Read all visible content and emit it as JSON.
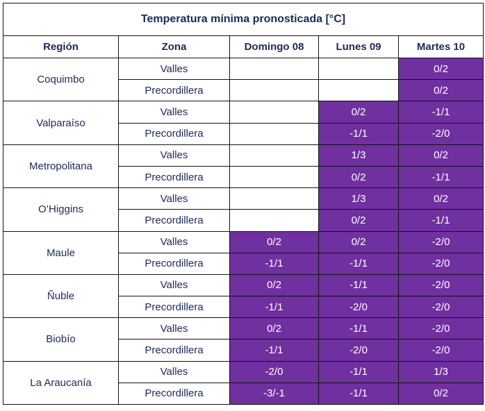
{
  "title": "Temperatura mínima pronosticada [°C]",
  "headers": [
    "Región",
    "Zona",
    "Domingo 08",
    "Lunes 09",
    "Martes 10"
  ],
  "highlight_color": "#7030a0",
  "regions": [
    {
      "name": "Coquimbo",
      "rows": [
        {
          "zona": "Valles",
          "values": [
            "",
            "",
            "0/2"
          ]
        },
        {
          "zona": "Precordillera",
          "values": [
            "",
            "",
            "0/2"
          ]
        }
      ]
    },
    {
      "name": "Valparaíso",
      "rows": [
        {
          "zona": "Valles",
          "values": [
            "",
            "0/2",
            "-1/1"
          ]
        },
        {
          "zona": "Precordillera",
          "values": [
            "",
            "-1/1",
            "-2/0"
          ]
        }
      ]
    },
    {
      "name": "Metropolitana",
      "rows": [
        {
          "zona": "Valles",
          "values": [
            "",
            "1/3",
            "0/2"
          ]
        },
        {
          "zona": "Precordillera",
          "values": [
            "",
            "0/2",
            "-1/1"
          ]
        }
      ]
    },
    {
      "name": "O’Higgins",
      "rows": [
        {
          "zona": "Valles",
          "values": [
            "",
            "1/3",
            "0/2"
          ]
        },
        {
          "zona": "Precordillera",
          "values": [
            "",
            "0/2",
            "-1/1"
          ]
        }
      ]
    },
    {
      "name": "Maule",
      "rows": [
        {
          "zona": "Valles",
          "values": [
            "0/2",
            "0/2",
            "-2/0"
          ]
        },
        {
          "zona": "Precordillera",
          "values": [
            "-1/1",
            "-1/1",
            "-2/0"
          ]
        }
      ]
    },
    {
      "name": "Ñuble",
      "rows": [
        {
          "zona": "Valles",
          "values": [
            "0/2",
            "-1/1",
            "-2/0"
          ]
        },
        {
          "zona": "Precordillera",
          "values": [
            "-1/1",
            "-2/0",
            "-2/0"
          ]
        }
      ]
    },
    {
      "name": "Biobío",
      "rows": [
        {
          "zona": "Valles",
          "values": [
            "0/2",
            "-1/1",
            "-2/0"
          ]
        },
        {
          "zona": "Precordillera",
          "values": [
            "-1/1",
            "-2/0",
            "-2/0"
          ]
        }
      ]
    },
    {
      "name": "La Araucanía",
      "rows": [
        {
          "zona": "Valles",
          "values": [
            "-2/0",
            "-1/1",
            "1/3"
          ]
        },
        {
          "zona": "Precordillera",
          "values": [
            "-3/-1",
            "-1/1",
            "0/2"
          ]
        }
      ]
    }
  ]
}
